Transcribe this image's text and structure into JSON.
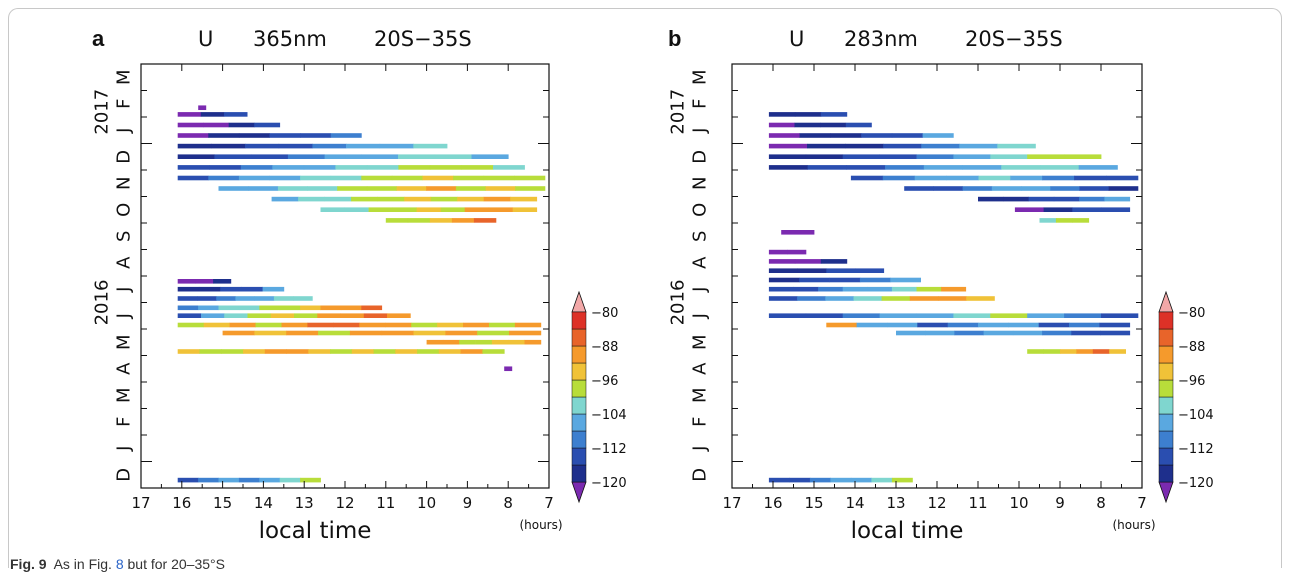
{
  "caption": {
    "label": "Fig. 9",
    "text_before": "As in Fig.",
    "ref": "8",
    "text_after": "but for 20–35°S"
  },
  "chart_data": [
    {
      "type": "heatmap",
      "panel": "a",
      "title_parts": [
        "U",
        "365nm",
        "20S−35S"
      ],
      "xlabel": "local time",
      "x_unit": "(hours)",
      "x_ticks": [
        17,
        16,
        15,
        14,
        13,
        12,
        11,
        10,
        9,
        8,
        7
      ],
      "xlim": [
        17,
        7
      ],
      "y_month_labels": [
        "D",
        "J",
        "F",
        "M",
        "A",
        "M",
        "J",
        "J",
        "A",
        "S",
        "O",
        "N",
        "D",
        "J",
        "F",
        "M"
      ],
      "y_year_labels": [
        "2016",
        "2017"
      ],
      "colorbar": {
        "ticks": [
          -80,
          -88,
          -96,
          -104,
          -112,
          -120
        ],
        "labels": [
          "−80",
          "−88",
          "−96",
          "−104",
          "−112",
          "−120"
        ],
        "range": [
          -120,
          -78
        ],
        "colors": [
          "#7b2ab0",
          "#1e2f8c",
          "#2a4eb0",
          "#3d7fcf",
          "#5aa8e0",
          "#7fd6cf",
          "#b8dd3a",
          "#f0c238",
          "#f59a2c",
          "#e8642a",
          "#dd3127",
          "#f2a8a8"
        ]
      },
      "strips": [
        {
          "y": 0.3,
          "x0": 16.1,
          "x1": 12.6,
          "v": [
            -110,
            -108,
            -106,
            -108,
            -104,
            -100,
            -98
          ]
        },
        {
          "y": 5.15,
          "x0": 16.1,
          "x1": 8.1,
          "v": [
            -94,
            -96,
            -98,
            -94,
            -90,
            -92,
            -94,
            -96,
            -94,
            -96,
            -94,
            -96,
            -94,
            -92,
            -96
          ]
        },
        {
          "y": 5.5,
          "x0": 10.0,
          "x1": 7.2,
          "v": [
            -90,
            -92,
            -96,
            -96,
            -94,
            -94,
            -92
          ]
        },
        {
          "y": 5.85,
          "x0": 15.0,
          "x1": 7.2,
          "v": [
            -92,
            -94,
            -90,
            -96,
            -92,
            -90,
            -94,
            -92,
            -96,
            -92
          ]
        },
        {
          "y": 6.15,
          "x0": 16.1,
          "x1": 7.2,
          "v": [
            -96,
            -94,
            -92,
            -96,
            -90,
            -88,
            -86,
            -90,
            -92,
            -96,
            -94,
            -92,
            -96,
            -90
          ]
        },
        {
          "y": 6.5,
          "x0": 16.1,
          "x1": 10.4,
          "v": [
            -110,
            -104,
            -100,
            -96,
            -94,
            -96,
            -92,
            -90,
            -88,
            -90
          ]
        },
        {
          "y": 6.8,
          "x0": 16.1,
          "x1": 11.1,
          "v": [
            -108,
            -104,
            -102,
            -100,
            -98,
            -96,
            -94,
            -92,
            -90,
            -88
          ]
        },
        {
          "y": 7.15,
          "x0": 16.1,
          "x1": 12.8,
          "v": [
            -112,
            -110,
            -108,
            -106,
            -104,
            -102,
            -100
          ]
        },
        {
          "y": 7.5,
          "x0": 16.1,
          "x1": 13.5,
          "v": [
            -116,
            -114,
            -112,
            -110,
            -106
          ]
        },
        {
          "y": 7.8,
          "x0": 16.1,
          "x1": 14.8,
          "v": [
            -120,
            -118,
            -116
          ]
        },
        {
          "y": 10.1,
          "x0": 11.0,
          "x1": 8.3,
          "v": [
            -98,
            -96,
            -94,
            -92,
            -88
          ]
        },
        {
          "y": 10.5,
          "x0": 12.6,
          "x1": 7.3,
          "v": [
            -102,
            -100,
            -98,
            -96,
            -94,
            -96,
            -92,
            -90,
            -94
          ]
        },
        {
          "y": 10.9,
          "x0": 13.8,
          "x1": 7.3,
          "v": [
            -104,
            -102,
            -100,
            -98,
            -96,
            -94,
            -96,
            -94,
            -92,
            -94
          ]
        },
        {
          "y": 11.3,
          "x0": 15.1,
          "x1": 7.1,
          "v": [
            -106,
            -104,
            -102,
            -100,
            -98,
            -96,
            -94,
            -92,
            -96,
            -94,
            -96
          ]
        },
        {
          "y": 11.7,
          "x0": 16.1,
          "x1": 7.1,
          "v": [
            -110,
            -108,
            -106,
            -104,
            -102,
            -100,
            -98,
            -96,
            -94,
            -96,
            -98,
            -96
          ]
        },
        {
          "y": 12.1,
          "x0": 16.1,
          "x1": 7.6,
          "v": [
            -112,
            -110,
            -108,
            -106,
            -104,
            -102,
            -100,
            -98,
            -96,
            -98,
            -102
          ]
        },
        {
          "y": 12.5,
          "x0": 16.1,
          "x1": 8.0,
          "v": [
            -114,
            -112,
            -110,
            -108,
            -106,
            -104,
            -102,
            -100,
            -104
          ]
        },
        {
          "y": 12.9,
          "x0": 16.1,
          "x1": 9.5,
          "v": [
            -116,
            -114,
            -112,
            -110,
            -108,
            -106,
            -104,
            -102
          ]
        },
        {
          "y": 13.3,
          "x0": 16.1,
          "x1": 11.6,
          "v": [
            -118,
            -116,
            -114,
            -112,
            -110,
            -108
          ]
        },
        {
          "y": 13.7,
          "x0": 16.1,
          "x1": 13.6,
          "v": [
            -120,
            -118,
            -116,
            -112
          ]
        },
        {
          "y": 14.1,
          "x0": 16.1,
          "x1": 14.4,
          "v": [
            -118,
            -116,
            -112
          ]
        }
      ],
      "points": [
        {
          "y": 4.5,
          "x": 8.0,
          "v": -120
        },
        {
          "y": 14.35,
          "x": 15.5,
          "v": -120
        }
      ]
    },
    {
      "type": "heatmap",
      "panel": "b",
      "title_parts": [
        "U",
        "283nm",
        "20S−35S"
      ],
      "xlabel": "local time",
      "x_unit": "(hours)",
      "x_ticks": [
        17,
        16,
        15,
        14,
        13,
        12,
        11,
        10,
        9,
        8,
        7
      ],
      "xlim": [
        17,
        7
      ],
      "y_month_labels": [
        "D",
        "J",
        "F",
        "M",
        "A",
        "M",
        "J",
        "J",
        "A",
        "S",
        "O",
        "N",
        "D",
        "J",
        "F",
        "M"
      ],
      "y_year_labels": [
        "2016",
        "2017"
      ],
      "colorbar": {
        "ticks": [
          -80,
          -88,
          -96,
          -104,
          -112,
          -120
        ],
        "labels": [
          "−80",
          "−88",
          "−96",
          "−104",
          "−112",
          "−120"
        ],
        "range": [
          -120,
          -78
        ],
        "colors": [
          "#7b2ab0",
          "#1e2f8c",
          "#2a4eb0",
          "#3d7fcf",
          "#5aa8e0",
          "#7fd6cf",
          "#b8dd3a",
          "#f0c238",
          "#f59a2c",
          "#e8642a",
          "#dd3127",
          "#f2a8a8"
        ]
      },
      "strips": [
        {
          "y": 0.3,
          "x0": 16.1,
          "x1": 12.6,
          "v": [
            -112,
            -110,
            -108,
            -106,
            -104,
            -100,
            -98
          ]
        },
        {
          "y": 5.15,
          "x0": 9.8,
          "x1": 7.4,
          "v": [
            -98,
            -96,
            -94,
            -90,
            -88,
            -94
          ]
        },
        {
          "y": 5.85,
          "x0": 13.0,
          "x1": 7.3,
          "v": [
            -106,
            -104,
            -108,
            -104,
            -106,
            -108,
            -112,
            -110
          ]
        },
        {
          "y": 6.15,
          "x0": 14.7,
          "x1": 7.3,
          "v": [
            -90,
            -104,
            -106,
            -112,
            -108,
            -104,
            -106,
            -112,
            -108,
            -110
          ]
        },
        {
          "y": 6.5,
          "x0": 16.1,
          "x1": 7.1,
          "v": [
            -112,
            -110,
            -108,
            -106,
            -104,
            -100,
            -98,
            -104,
            -108,
            -112
          ]
        },
        {
          "y": 7.15,
          "x0": 16.1,
          "x1": 10.6,
          "v": [
            -110,
            -108,
            -104,
            -100,
            -96,
            -92,
            -90,
            -94
          ]
        },
        {
          "y": 7.5,
          "x0": 16.1,
          "x1": 11.3,
          "v": [
            -112,
            -110,
            -108,
            -106,
            -104,
            -100,
            -96,
            -92
          ]
        },
        {
          "y": 7.85,
          "x0": 16.1,
          "x1": 12.4,
          "v": [
            -114,
            -112,
            -110,
            -108,
            -106
          ]
        },
        {
          "y": 8.2,
          "x0": 16.1,
          "x1": 13.3,
          "v": [
            -116,
            -114,
            -112,
            -110
          ]
        },
        {
          "y": 8.55,
          "x0": 16.1,
          "x1": 14.2,
          "v": [
            -120,
            -118,
            -116
          ]
        },
        {
          "y": 8.9,
          "x0": 16.1,
          "x1": 15.2,
          "v": [
            -120,
            -118
          ]
        },
        {
          "y": 9.65,
          "x0": 15.8,
          "x1": 15.0,
          "v": [
            -120
          ]
        },
        {
          "y": 10.1,
          "x0": 9.5,
          "x1": 8.3,
          "v": [
            -100,
            -98,
            -96
          ]
        },
        {
          "y": 10.5,
          "x0": 10.1,
          "x1": 7.3,
          "v": [
            -120,
            -116,
            -112,
            -110
          ]
        },
        {
          "y": 10.9,
          "x0": 11.0,
          "x1": 7.3,
          "v": [
            -116,
            -114,
            -112,
            -110,
            -108,
            -106
          ]
        },
        {
          "y": 11.3,
          "x0": 12.8,
          "x1": 7.1,
          "v": [
            -112,
            -110,
            -108,
            -106,
            -104,
            -108,
            -112,
            -114
          ]
        },
        {
          "y": 11.7,
          "x0": 14.1,
          "x1": 7.1,
          "v": [
            -110,
            -108,
            -106,
            -104,
            -102,
            -104,
            -108,
            -110,
            -112
          ]
        },
        {
          "y": 12.1,
          "x0": 16.1,
          "x1": 7.6,
          "v": [
            -114,
            -112,
            -110,
            -108,
            -106,
            -104,
            -102,
            -100,
            -104
          ]
        },
        {
          "y": 12.5,
          "x0": 16.1,
          "x1": 8.0,
          "v": [
            -116,
            -114,
            -112,
            -110,
            -108,
            -104,
            -100,
            -98,
            -96
          ]
        },
        {
          "y": 12.9,
          "x0": 16.1,
          "x1": 9.6,
          "v": [
            -118,
            -116,
            -114,
            -112,
            -108,
            -104,
            -100
          ]
        },
        {
          "y": 13.3,
          "x0": 16.1,
          "x1": 11.6,
          "v": [
            -118,
            -116,
            -114,
            -112,
            -110,
            -104
          ]
        },
        {
          "y": 13.7,
          "x0": 16.1,
          "x1": 13.6,
          "v": [
            -118,
            -116,
            -114,
            -112
          ]
        },
        {
          "y": 14.1,
          "x0": 16.1,
          "x1": 14.2,
          "v": [
            -116,
            -114,
            -110
          ]
        }
      ],
      "points": []
    }
  ]
}
